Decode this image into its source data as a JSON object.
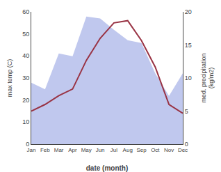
{
  "chart_data": {
    "type": "line",
    "categories": [
      "Jan",
      "Feb",
      "Mar",
      "Apr",
      "May",
      "Jun",
      "Jul",
      "Aug",
      "Sep",
      "Oct",
      "Nov",
      "Dec"
    ],
    "series": [
      {
        "type": "area",
        "color": "#c0c8ee",
        "axis": "y2",
        "values": [
          9.3,
          8.3,
          13.7,
          13.3,
          19.3,
          19.0,
          17.3,
          15.7,
          15.3,
          10.7,
          7.3,
          10.7
        ]
      },
      {
        "type": "line",
        "color": "#993344",
        "values": [
          15,
          18,
          22,
          25,
          38,
          48,
          55,
          56,
          47,
          35,
          18,
          14
        ]
      }
    ],
    "xlabel": "date (month)",
    "ylabel": "max temp (C)",
    "y2label": "med. precipitation\n(kg/m2)",
    "ylim": [
      0,
      60
    ],
    "yticks": [
      0,
      10,
      20,
      30,
      40,
      50,
      60
    ],
    "y2lim": [
      0,
      20
    ],
    "y2ticks": [
      0,
      5,
      10,
      15,
      20
    ],
    "grid": false
  }
}
